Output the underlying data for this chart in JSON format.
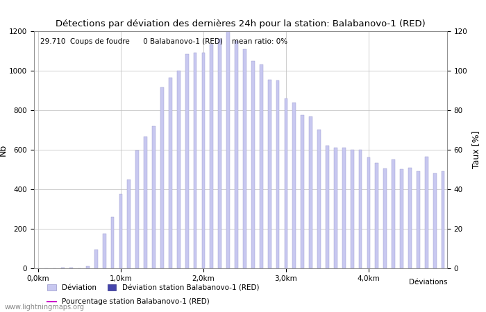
{
  "title": "Détections par déviation des dernières 24h pour la station: Balabanovo-1 (RED)",
  "annotation": "29.710  Coups de foudre      0 Balabanovo-1 (RED)    mean ratio: 0%",
  "xlabel": "Déviations",
  "ylabel_left": "Nb",
  "ylabel_right": "Taux [%]",
  "xlim_left": -0.5,
  "xlim_right": 49.5,
  "ylim_left": [
    0,
    1200
  ],
  "ylim_right": [
    0,
    120
  ],
  "xtick_positions": [
    0,
    10,
    20,
    30,
    40
  ],
  "xtick_labels": [
    "0,0km",
    "1,0km",
    "2,0km",
    "3,0km",
    "4,0km"
  ],
  "ytick_left": [
    0,
    200,
    400,
    600,
    800,
    1000,
    1200
  ],
  "ytick_right": [
    0,
    20,
    40,
    60,
    80,
    100,
    120
  ],
  "bar_color_light": "#c8c8f0",
  "bar_color_dark": "#4444aa",
  "bar_edge_color": "#9999cc",
  "grid_color": "#bbbbbb",
  "background_color": "#ffffff",
  "watermark": "www.lightningmaps.org",
  "legend_label_deviation": "Déviation",
  "legend_label_station": "Déviation station Balabanovo-1 (RED)",
  "legend_label_percent": "Pourcentage station Balabanovo-1 (RED)",
  "legend_label_xlabel": "Déviations",
  "bars": [
    0,
    0,
    0,
    3,
    5,
    0,
    10,
    95,
    175,
    260,
    375,
    450,
    595,
    665,
    720,
    915,
    965,
    1000,
    1085,
    1090,
    1090,
    1135,
    1160,
    1200,
    1150,
    1110,
    1050,
    1030,
    955,
    950,
    860,
    840,
    775,
    770,
    700,
    620,
    610,
    610,
    600,
    600,
    560,
    535,
    505,
    550,
    500,
    510,
    490,
    565,
    480,
    490
  ]
}
